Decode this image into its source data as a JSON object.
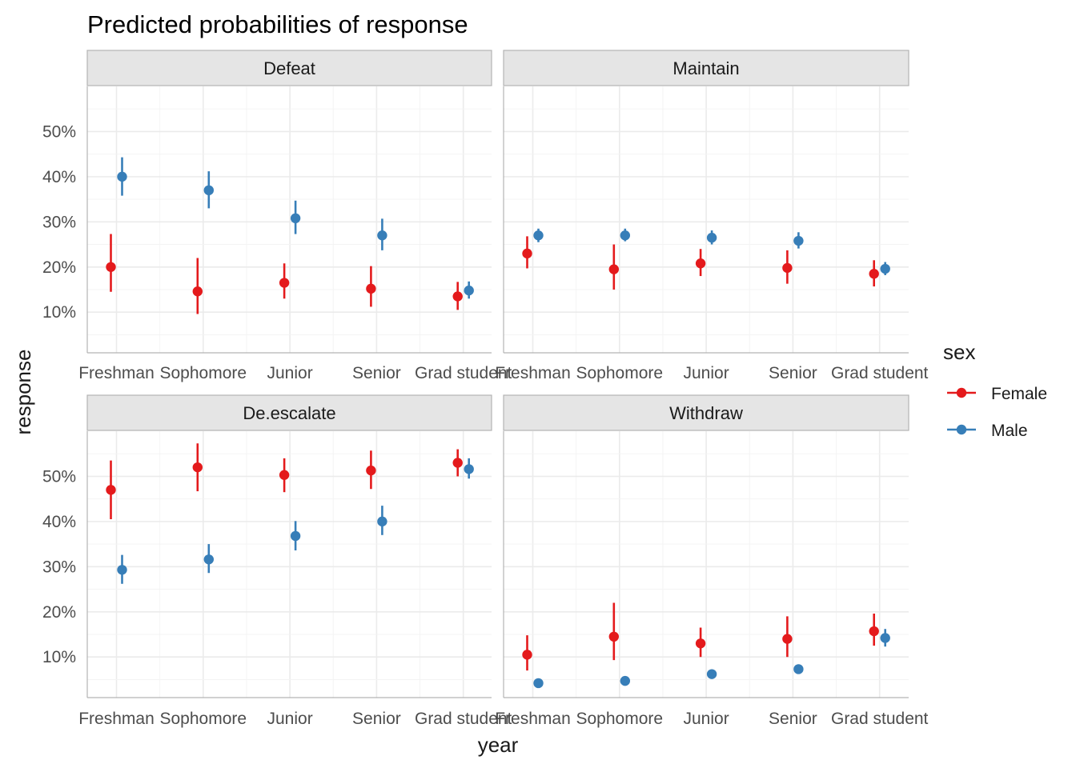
{
  "chart_data": {
    "type": "scatter",
    "title": "Predicted probabilities of response",
    "xlabel": "year",
    "ylabel": "response",
    "categories": [
      "Freshman",
      "Sophomore",
      "Junior",
      "Senior",
      "Grad student"
    ],
    "y_tick_labels": [
      "10%",
      "20%",
      "30%",
      "40%",
      "50%"
    ],
    "y_ticks": [
      0.1,
      0.2,
      0.3,
      0.4,
      0.5
    ],
    "legend": {
      "title": "sex",
      "entries": [
        {
          "name": "Female",
          "color": "#e41a1c"
        },
        {
          "name": "Male",
          "color": "#377eb8"
        }
      ]
    },
    "panels": [
      {
        "name": "Defeat",
        "ylim": [
          0.01,
          0.6
        ],
        "series": [
          {
            "name": "Female",
            "values": [
              0.2,
              0.146,
              0.165,
              0.152,
              0.135
            ],
            "lower": [
              0.145,
              0.096,
              0.13,
              0.112,
              0.105
            ],
            "upper": [
              0.273,
              0.22,
              0.208,
              0.202,
              0.167
            ]
          },
          {
            "name": "Male",
            "values": [
              0.4,
              0.37,
              0.308,
              0.27,
              0.148
            ],
            "lower": [
              0.358,
              0.33,
              0.273,
              0.237,
              0.13
            ],
            "upper": [
              0.443,
              0.412,
              0.347,
              0.307,
              0.168
            ]
          }
        ]
      },
      {
        "name": "Maintain",
        "ylim": [
          0.01,
          0.6
        ],
        "series": [
          {
            "name": "Female",
            "values": [
              0.23,
              0.195,
              0.208,
              0.198,
              0.185
            ],
            "lower": [
              0.197,
              0.15,
              0.18,
              0.163,
              0.157
            ],
            "upper": [
              0.268,
              0.25,
              0.24,
              0.237,
              0.215
            ]
          },
          {
            "name": "Male",
            "values": [
              0.27,
              0.27,
              0.265,
              0.258,
              0.196
            ],
            "lower": [
              0.255,
              0.257,
              0.25,
              0.241,
              0.182
            ],
            "upper": [
              0.285,
              0.285,
              0.281,
              0.277,
              0.211
            ]
          }
        ]
      },
      {
        "name": "De.escalate",
        "ylim": [
          0.01,
          0.6
        ],
        "series": [
          {
            "name": "Female",
            "values": [
              0.47,
              0.52,
              0.503,
              0.513,
              0.53
            ],
            "lower": [
              0.405,
              0.467,
              0.465,
              0.472,
              0.5
            ],
            "upper": [
              0.535,
              0.573,
              0.54,
              0.557,
              0.56
            ]
          },
          {
            "name": "Male",
            "values": [
              0.293,
              0.316,
              0.368,
              0.4,
              0.516
            ],
            "lower": [
              0.262,
              0.286,
              0.336,
              0.37,
              0.495
            ],
            "upper": [
              0.326,
              0.35,
              0.401,
              0.435,
              0.54
            ]
          }
        ]
      },
      {
        "name": "Withdraw",
        "ylim": [
          0.01,
          0.6
        ],
        "series": [
          {
            "name": "Female",
            "values": [
              0.105,
              0.145,
              0.13,
              0.14,
              0.157
            ],
            "lower": [
              0.07,
              0.093,
              0.1,
              0.1,
              0.125
            ],
            "upper": [
              0.148,
              0.22,
              0.165,
              0.19,
              0.196
            ]
          },
          {
            "name": "Male",
            "values": [
              0.042,
              0.047,
              0.062,
              0.073,
              0.142
            ],
            "lower": [
              0.037,
              0.042,
              0.056,
              0.066,
              0.123
            ],
            "upper": [
              0.047,
              0.053,
              0.068,
              0.081,
              0.162
            ]
          }
        ]
      }
    ]
  }
}
